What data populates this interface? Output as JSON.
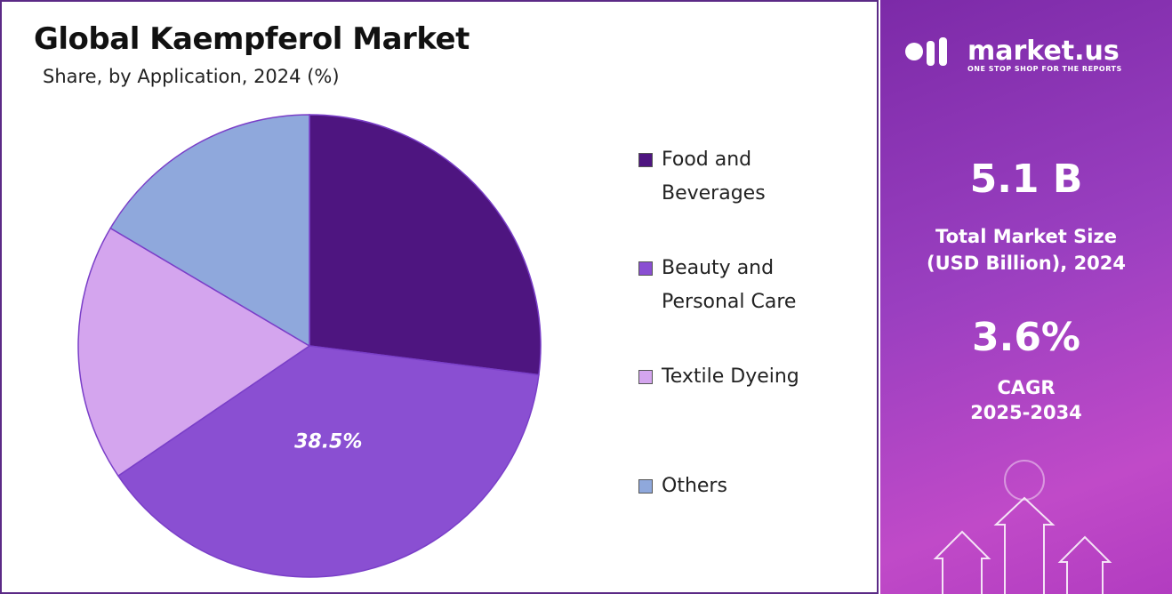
{
  "chart_data": {
    "type": "pie",
    "title": "Global Kaempferol Market",
    "subtitle": "Share, by Application, 2024 (%)",
    "categories": [
      "Food and Beverages",
      "Beauty and Personal Care",
      "Textile Dyeing",
      "Others"
    ],
    "values": [
      27,
      38.5,
      18,
      16.5
    ],
    "value_labels": [
      null,
      "38.5%",
      null,
      null
    ],
    "colors": [
      "#4e1580",
      "#8a4fd2",
      "#d4a5ee",
      "#8fa8dc"
    ]
  },
  "panel": {
    "brand": "market.us",
    "tagline": "ONE STOP SHOP FOR THE REPORTS",
    "market_size": "5.1 B",
    "market_size_label": [
      "Total Market Size",
      "(USD Billion), 2024"
    ],
    "cagr": "3.6%",
    "cagr_label": [
      "CAGR",
      "2025-2034"
    ]
  }
}
